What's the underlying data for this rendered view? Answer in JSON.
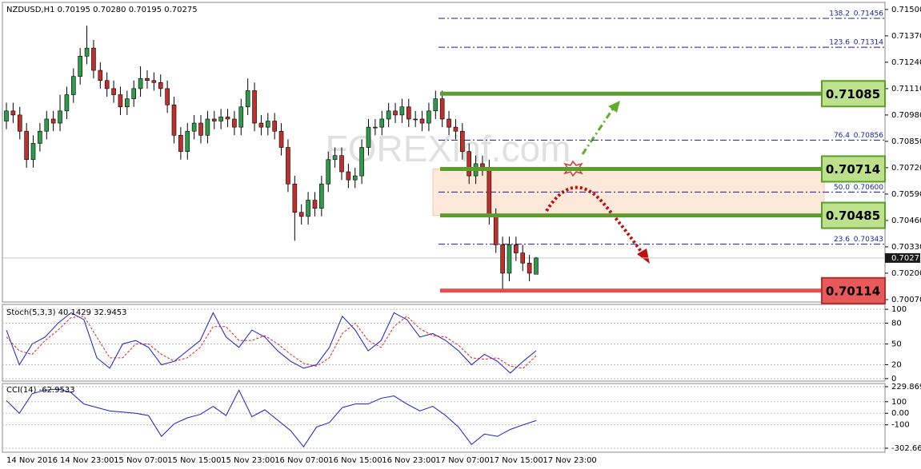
{
  "chart_data": [
    {
      "type": "candlestick",
      "title": "NZDUSD,H1  0.70195 0.70280 0.70195 0.70275",
      "watermark": "FOREXinf.com",
      "up_color": "#2e9a4a",
      "down_color": "#c0302a",
      "open": [
        0.7095,
        0.71,
        0.7098,
        0.709,
        0.7076,
        0.7084,
        0.709,
        0.7096,
        0.7094,
        0.71,
        0.7108,
        0.7117,
        0.7127,
        0.7131,
        0.712,
        0.7115,
        0.7111,
        0.7108,
        0.7102,
        0.7106,
        0.7111,
        0.7116,
        0.7115,
        0.7114,
        0.7111,
        0.7103,
        0.7088,
        0.708,
        0.709,
        0.7094,
        0.7088,
        0.7096,
        0.7095,
        0.7097,
        0.7096,
        0.7092,
        0.7102,
        0.711,
        0.7094,
        0.7092,
        0.7095,
        0.709,
        0.7082,
        0.7064,
        0.705,
        0.7048,
        0.7056,
        0.7052,
        0.7064,
        0.7076,
        0.7078,
        0.707,
        0.7066,
        0.7068,
        0.7082,
        0.7092,
        0.7092,
        0.7096,
        0.71,
        0.7098,
        0.7102,
        0.7096,
        0.7096,
        0.7094,
        0.71,
        0.7106,
        0.7096,
        0.7092,
        0.709,
        0.708,
        0.7068,
        0.7074,
        0.7072,
        0.7048,
        0.7034,
        0.702,
        0.7034,
        0.703,
        0.7025,
        0.70195
      ],
      "high": [
        0.7104,
        0.7104,
        0.7102,
        0.7094,
        0.7088,
        0.7094,
        0.71,
        0.71,
        0.7108,
        0.7112,
        0.7121,
        0.7131,
        0.7142,
        0.7135,
        0.7124,
        0.7119,
        0.7115,
        0.7112,
        0.711,
        0.7115,
        0.7122,
        0.712,
        0.7119,
        0.7118,
        0.7115,
        0.7107,
        0.7092,
        0.7094,
        0.7098,
        0.7098,
        0.71,
        0.71,
        0.7101,
        0.7101,
        0.71,
        0.7106,
        0.7116,
        0.7114,
        0.7098,
        0.7099,
        0.7099,
        0.7094,
        0.7086,
        0.7068,
        0.7054,
        0.706,
        0.706,
        0.7068,
        0.708,
        0.7082,
        0.7082,
        0.7074,
        0.7072,
        0.7086,
        0.7096,
        0.7096,
        0.71,
        0.7104,
        0.7104,
        0.7106,
        0.7106,
        0.71,
        0.71,
        0.7104,
        0.711,
        0.711,
        0.71,
        0.7096,
        0.7094,
        0.7084,
        0.7078,
        0.7078,
        0.7076,
        0.7052,
        0.7038,
        0.7038,
        0.7038,
        0.7034,
        0.7029,
        0.7028
      ],
      "low": [
        0.7091,
        0.7094,
        0.7086,
        0.7072,
        0.7072,
        0.708,
        0.7086,
        0.709,
        0.709,
        0.7096,
        0.7104,
        0.7113,
        0.7123,
        0.7116,
        0.7111,
        0.7107,
        0.7104,
        0.7098,
        0.7098,
        0.7102,
        0.7107,
        0.7111,
        0.711,
        0.7107,
        0.7099,
        0.7084,
        0.7076,
        0.7076,
        0.7086,
        0.7084,
        0.7084,
        0.7091,
        0.7091,
        0.7092,
        0.7088,
        0.7088,
        0.7098,
        0.709,
        0.7088,
        0.7088,
        0.7086,
        0.7078,
        0.706,
        0.7036,
        0.7044,
        0.7044,
        0.7048,
        0.7048,
        0.706,
        0.7072,
        0.7066,
        0.7062,
        0.7062,
        0.7064,
        0.7078,
        0.7088,
        0.7088,
        0.7092,
        0.7094,
        0.7094,
        0.7092,
        0.7092,
        0.709,
        0.709,
        0.7096,
        0.7092,
        0.7088,
        0.7086,
        0.7076,
        0.7064,
        0.7064,
        0.7068,
        0.7044,
        0.703,
        0.7011,
        0.7016,
        0.7026,
        0.7021,
        0.7016,
        0.70195
      ],
      "close": [
        0.71,
        0.7098,
        0.709,
        0.7076,
        0.7084,
        0.709,
        0.7096,
        0.7094,
        0.71,
        0.7108,
        0.7117,
        0.7127,
        0.7131,
        0.712,
        0.7115,
        0.7111,
        0.7108,
        0.7102,
        0.7106,
        0.7111,
        0.7116,
        0.7115,
        0.7114,
        0.7111,
        0.7103,
        0.7088,
        0.708,
        0.709,
        0.7094,
        0.7088,
        0.7096,
        0.7095,
        0.7097,
        0.7096,
        0.7092,
        0.7102,
        0.711,
        0.7094,
        0.7092,
        0.7095,
        0.709,
        0.7082,
        0.7064,
        0.705,
        0.7048,
        0.7056,
        0.7052,
        0.7064,
        0.7076,
        0.7078,
        0.707,
        0.7066,
        0.7068,
        0.7082,
        0.7092,
        0.7092,
        0.7096,
        0.71,
        0.7098,
        0.7102,
        0.7096,
        0.7096,
        0.7094,
        0.71,
        0.7106,
        0.7096,
        0.7092,
        0.709,
        0.708,
        0.7068,
        0.7074,
        0.7072,
        0.7048,
        0.7034,
        0.702,
        0.7034,
        0.703,
        0.7025,
        0.702,
        0.70275
      ],
      "ylim": [
        0.70058,
        0.71535
      ],
      "yticks": [
        {
          "value": 0.715,
          "label": "0.71500"
        },
        {
          "value": 0.7137,
          "label": "0.71370"
        },
        {
          "value": 0.7124,
          "label": "0.71240"
        },
        {
          "value": 0.7111,
          "label": "0.71110"
        },
        {
          "value": 0.7098,
          "label": "0.70980"
        },
        {
          "value": 0.7085,
          "label": "0.70850"
        },
        {
          "value": 0.7072,
          "label": "0.70720"
        },
        {
          "value": 0.7059,
          "label": "0.70590"
        },
        {
          "value": 0.7046,
          "label": "0.70460"
        },
        {
          "value": 0.7033,
          "label": "0.70330"
        },
        {
          "value": 0.702,
          "label": "0.70200"
        },
        {
          "value": 0.7007,
          "label": "0.70070"
        }
      ],
      "current_price": 0.70275,
      "levels": [
        {
          "value": 0.71085,
          "color": "#5b9e2c"
        },
        {
          "value": 0.70714,
          "color": "#5b9e2c"
        },
        {
          "value": 0.70485,
          "color": "#5b9e2c"
        },
        {
          "value": 0.70114,
          "color": "#e05050"
        }
      ],
      "fibonacci": [
        {
          "ratio": "138.2",
          "value": 0.71456
        },
        {
          "ratio": "123.6",
          "value": 0.71314
        },
        {
          "ratio": "76.4",
          "value": 0.70856
        },
        {
          "ratio": "50.0",
          "value": 0.706
        },
        {
          "ratio": "23.6",
          "value": 0.70343
        }
      ],
      "fib_labels": [
        "0.71456",
        "0.71314",
        "0.70856",
        "0.70600",
        "0.70343"
      ],
      "xlabels": [
        "14 Nov 2016",
        "14 Nov 23:00",
        "15 Nov 07:00",
        "15 Nov 15:00",
        "15 Nov 23:00",
        "16 Nov 07:00",
        "16 Nov 15:00",
        "16 Nov 23:00",
        "17 Nov 07:00",
        "17 Nov 15:00",
        "17 Nov 23:00"
      ]
    },
    {
      "type": "line",
      "title": "Stoch(5,3,3) 40.1429 32.9453",
      "series": [
        {
          "name": "Main",
          "color": "#1a1ad0",
          "dash": false,
          "values": [
            70,
            20,
            50,
            60,
            80,
            95,
            85,
            30,
            15,
            50,
            55,
            45,
            20,
            25,
            40,
            55,
            95,
            60,
            45,
            70,
            60,
            40,
            25,
            15,
            20,
            45,
            90,
            70,
            40,
            55,
            95,
            85,
            60,
            65,
            55,
            40,
            20,
            35,
            25,
            8,
            25,
            40.1429
          ]
        },
        {
          "name": "Signal",
          "color": "#e02020",
          "dash": true,
          "values": [
            60,
            40,
            35,
            55,
            70,
            88,
            90,
            60,
            30,
            30,
            50,
            50,
            35,
            25,
            30,
            45,
            75,
            75,
            55,
            55,
            62,
            50,
            35,
            22,
            18,
            30,
            65,
            80,
            55,
            45,
            75,
            90,
            72,
            62,
            60,
            48,
            30,
            28,
            30,
            18,
            15,
            32.9453
          ]
        }
      ],
      "ylim": [
        -3.6,
        107
      ],
      "yticks": [
        100,
        80,
        50,
        20,
        0
      ]
    },
    {
      "type": "line",
      "title": "CCI(14) -62.9533",
      "series": [
        {
          "name": "CCI",
          "color": "#1a1ad0",
          "dash": false,
          "values": [
            110,
            0,
            170,
            200,
            210,
            180,
            80,
            50,
            20,
            10,
            0,
            -20,
            -200,
            -90,
            -40,
            -10,
            60,
            -20,
            200,
            -30,
            30,
            -60,
            -150,
            -290,
            -120,
            -80,
            50,
            80,
            80,
            130,
            150,
            80,
            20,
            60,
            -20,
            -120,
            -270,
            -180,
            -200,
            -140,
            -100,
            -62.9533
          ]
        }
      ],
      "ylim": [
        -337.2,
        257.5
      ],
      "yticks": [
        229.8692,
        100,
        {
          "value": 0,
          "label": "0.00"
        },
        -100,
        -302.6627
      ]
    }
  ]
}
